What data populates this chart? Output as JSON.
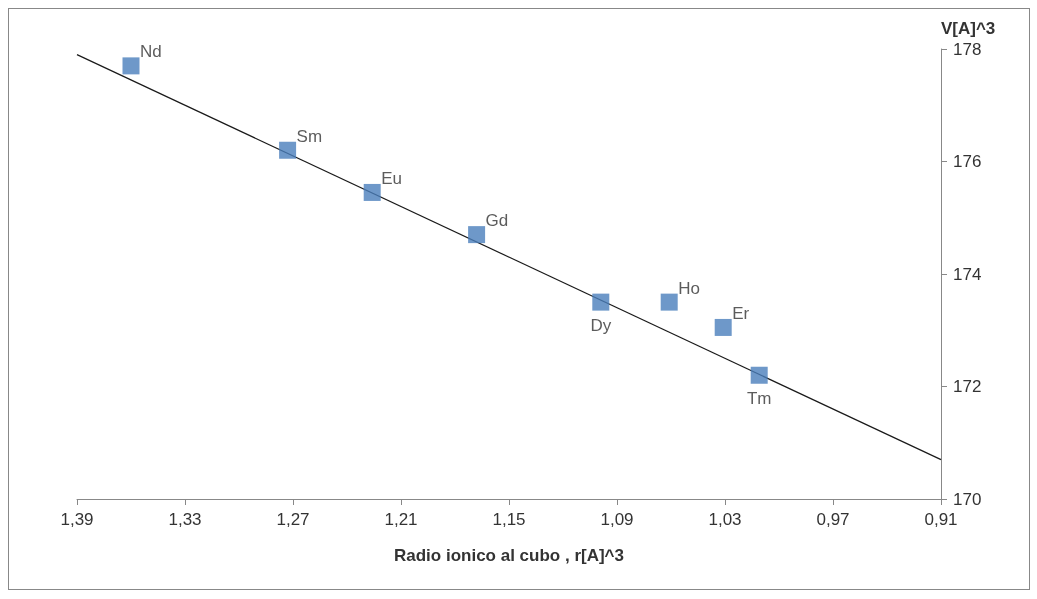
{
  "chart_data": {
    "type": "scatter",
    "xlabel": "Radio ionico al cubo , r[A]^3",
    "ylabel": "V[A]^3",
    "xlim": [
      1.39,
      0.91
    ],
    "xticks": [
      {
        "value": 1.39,
        "label": "1,39"
      },
      {
        "value": 1.33,
        "label": "1,33"
      },
      {
        "value": 1.27,
        "label": "1,27"
      },
      {
        "value": 1.21,
        "label": "1,21"
      },
      {
        "value": 1.15,
        "label": "1,15"
      },
      {
        "value": 1.09,
        "label": "1,09"
      },
      {
        "value": 1.03,
        "label": "1,03"
      },
      {
        "value": 0.97,
        "label": "0,97"
      },
      {
        "value": 0.91,
        "label": "0,91"
      }
    ],
    "ylim": [
      170,
      178
    ],
    "yticks": [
      170,
      172,
      174,
      176,
      178
    ],
    "grid": false,
    "marker": "square",
    "series": [
      {
        "color": "#4a7ebb",
        "x": [
          1.36,
          1.273,
          1.226,
          1.168,
          1.099,
          1.061,
          1.031,
          1.011
        ],
        "values": [
          177.7,
          176.2,
          175.45,
          174.7,
          173.5,
          173.5,
          173.05,
          172.2
        ]
      },
      {
        "type": "line",
        "color": "#1a1a1a",
        "x": [
          1.39,
          0.91
        ],
        "values": [
          177.9,
          170.7
        ],
        "marker": "none",
        "line_style": "solid"
      }
    ],
    "annotations": [
      {
        "text": "Nd",
        "x": 1.36,
        "y": 177.7
      },
      {
        "text": "Sm",
        "x": 1.273,
        "y": 176.2
      },
      {
        "text": "Eu",
        "x": 1.226,
        "y": 175.45
      },
      {
        "text": "Gd",
        "x": 1.168,
        "y": 174.7
      },
      {
        "text": "Dy",
        "x": 1.099,
        "y": 173.5
      },
      {
        "text": "Ho",
        "x": 1.061,
        "y": 173.5
      },
      {
        "text": "Er",
        "x": 1.031,
        "y": 173.05
      },
      {
        "text": "Tm",
        "x": 1.011,
        "y": 172.2
      }
    ]
  }
}
